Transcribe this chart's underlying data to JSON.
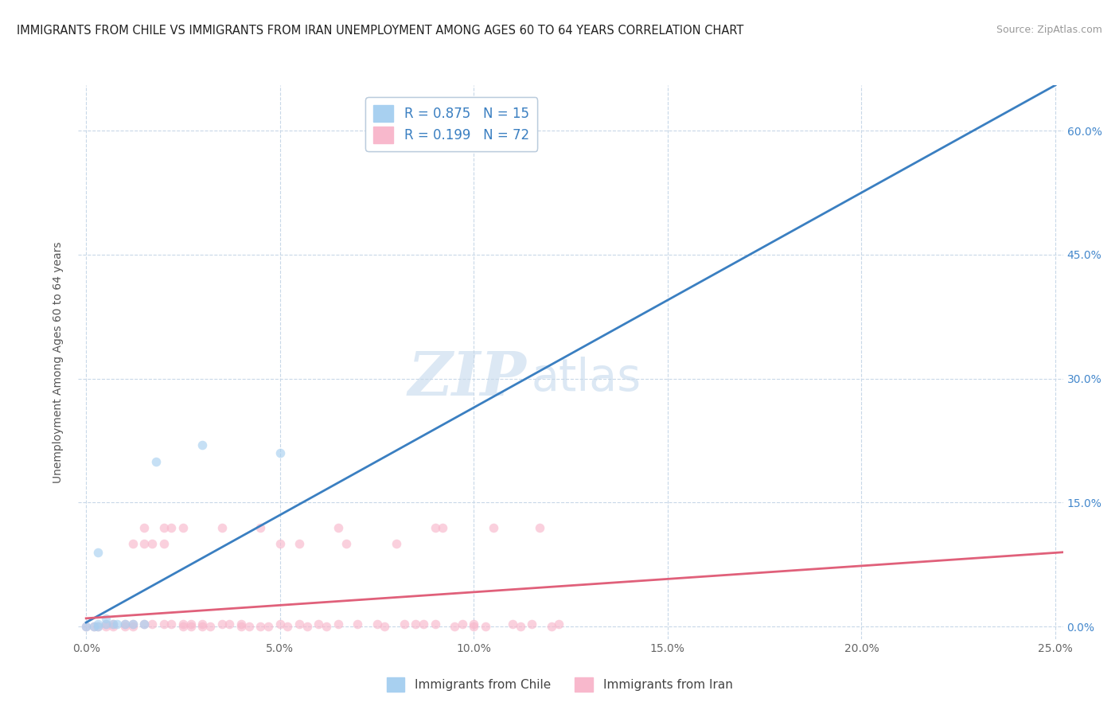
{
  "title": "IMMIGRANTS FROM CHILE VS IMMIGRANTS FROM IRAN UNEMPLOYMENT AMONG AGES 60 TO 64 YEARS CORRELATION CHART",
  "source": "Source: ZipAtlas.com",
  "ylabel": "Unemployment Among Ages 60 to 64 years",
  "watermark_zip": "ZIP",
  "watermark_atlas": "atlas",
  "xlim": [
    -0.002,
    0.252
  ],
  "ylim": [
    -0.015,
    0.655
  ],
  "xticks": [
    0.0,
    0.05,
    0.1,
    0.15,
    0.2,
    0.25
  ],
  "xticklabels": [
    "0.0%",
    "5.0%",
    "10.0%",
    "15.0%",
    "20.0%",
    "25.0%"
  ],
  "yticks_right": [
    0.0,
    0.15,
    0.3,
    0.45,
    0.6
  ],
  "yticklabels_right": [
    "0.0%",
    "15.0%",
    "30.0%",
    "45.0%",
    "60.0%"
  ],
  "legend_entries": [
    {
      "label_r": "R = 0.875",
      "label_n": "N = 15",
      "color": "#a8d0f0"
    },
    {
      "label_r": "R = 0.199",
      "label_n": "N = 72",
      "color": "#f8b8cc"
    }
  ],
  "legend_bottom": [
    {
      "label": "Immigrants from Chile",
      "color": "#a8d0f0"
    },
    {
      "label": "Immigrants from Iran",
      "color": "#f8b8cc"
    }
  ],
  "chile_scatter": [
    [
      0.0,
      0.0
    ],
    [
      0.002,
      0.0
    ],
    [
      0.003,
      0.0
    ],
    [
      0.003,
      0.003
    ],
    [
      0.005,
      0.003
    ],
    [
      0.005,
      0.01
    ],
    [
      0.007,
      0.003
    ],
    [
      0.008,
      0.003
    ],
    [
      0.01,
      0.003
    ],
    [
      0.012,
      0.003
    ],
    [
      0.015,
      0.003
    ],
    [
      0.018,
      0.2
    ],
    [
      0.03,
      0.22
    ],
    [
      0.05,
      0.21
    ],
    [
      0.003,
      0.09
    ]
  ],
  "iran_scatter": [
    [
      0.0,
      0.0
    ],
    [
      0.002,
      0.0
    ],
    [
      0.003,
      0.0
    ],
    [
      0.005,
      0.0
    ],
    [
      0.005,
      0.003
    ],
    [
      0.007,
      0.0
    ],
    [
      0.007,
      0.003
    ],
    [
      0.01,
      0.0
    ],
    [
      0.01,
      0.003
    ],
    [
      0.012,
      0.0
    ],
    [
      0.012,
      0.003
    ],
    [
      0.012,
      0.1
    ],
    [
      0.015,
      0.003
    ],
    [
      0.015,
      0.1
    ],
    [
      0.015,
      0.12
    ],
    [
      0.017,
      0.003
    ],
    [
      0.017,
      0.1
    ],
    [
      0.02,
      0.003
    ],
    [
      0.02,
      0.1
    ],
    [
      0.02,
      0.12
    ],
    [
      0.022,
      0.003
    ],
    [
      0.022,
      0.12
    ],
    [
      0.025,
      0.003
    ],
    [
      0.025,
      0.0
    ],
    [
      0.025,
      0.12
    ],
    [
      0.027,
      0.003
    ],
    [
      0.027,
      0.0
    ],
    [
      0.03,
      0.003
    ],
    [
      0.03,
      0.0
    ],
    [
      0.032,
      0.0
    ],
    [
      0.035,
      0.003
    ],
    [
      0.035,
      0.12
    ],
    [
      0.037,
      0.003
    ],
    [
      0.04,
      0.003
    ],
    [
      0.04,
      0.0
    ],
    [
      0.042,
      0.0
    ],
    [
      0.045,
      0.0
    ],
    [
      0.045,
      0.12
    ],
    [
      0.047,
      0.0
    ],
    [
      0.05,
      0.003
    ],
    [
      0.05,
      0.1
    ],
    [
      0.052,
      0.0
    ],
    [
      0.055,
      0.003
    ],
    [
      0.055,
      0.1
    ],
    [
      0.057,
      0.0
    ],
    [
      0.06,
      0.003
    ],
    [
      0.062,
      0.0
    ],
    [
      0.065,
      0.003
    ],
    [
      0.065,
      0.12
    ],
    [
      0.067,
      0.1
    ],
    [
      0.07,
      0.003
    ],
    [
      0.075,
      0.003
    ],
    [
      0.077,
      0.0
    ],
    [
      0.08,
      0.1
    ],
    [
      0.082,
      0.003
    ],
    [
      0.085,
      0.003
    ],
    [
      0.087,
      0.003
    ],
    [
      0.09,
      0.003
    ],
    [
      0.09,
      0.12
    ],
    [
      0.092,
      0.12
    ],
    [
      0.095,
      0.0
    ],
    [
      0.097,
      0.003
    ],
    [
      0.1,
      0.003
    ],
    [
      0.1,
      0.0
    ],
    [
      0.103,
      0.0
    ],
    [
      0.105,
      0.12
    ],
    [
      0.11,
      0.003
    ],
    [
      0.112,
      0.0
    ],
    [
      0.115,
      0.003
    ],
    [
      0.117,
      0.12
    ],
    [
      0.12,
      0.0
    ],
    [
      0.122,
      0.003
    ]
  ],
  "chile_line_x": [
    0.0,
    0.25
  ],
  "chile_line_y": [
    0.005,
    0.655
  ],
  "iran_line_x": [
    0.0,
    0.252
  ],
  "iran_line_y": [
    0.01,
    0.09
  ],
  "scatter_alpha": 0.65,
  "scatter_size": 70,
  "chile_color": "#a8d0f0",
  "iran_color": "#f8b8cc",
  "chile_line_color": "#3a7fc1",
  "iran_line_color": "#e0607a",
  "grid_color": "#c8d8e8",
  "title_color": "#222222",
  "title_fontsize": 10.5,
  "axis_label_color": "#555555",
  "tick_color_right": "#4488cc",
  "watermark_color": "#dce8f4",
  "watermark_fontsize": 55
}
